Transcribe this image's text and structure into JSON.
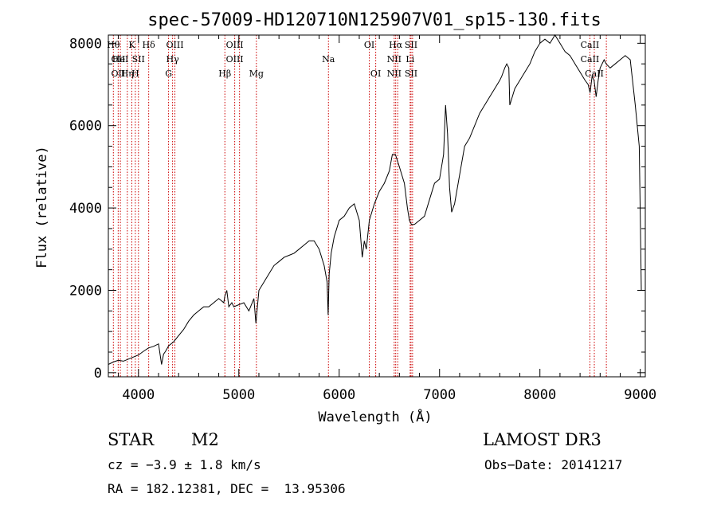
{
  "chart_data": {
    "type": "line",
    "title": "spec-57009-HD120710N125907V01_sp15-130.fits",
    "xlabel": "Wavelength (Å)",
    "ylabel": "Flux (relative)",
    "xlim": [
      3700,
      9050
    ],
    "ylim": [
      -100,
      8200
    ],
    "xticks": [
      4000,
      5000,
      6000,
      7000,
      8000,
      9000
    ],
    "yticks": [
      0,
      2000,
      4000,
      6000,
      8000
    ],
    "series": [
      {
        "name": "flux",
        "x": [
          3700,
          3750,
          3800,
          3850,
          3900,
          3950,
          4000,
          4050,
          4100,
          4150,
          4200,
          4230,
          4250,
          4270,
          4300,
          4350,
          4400,
          4450,
          4500,
          4550,
          4600,
          4650,
          4700,
          4750,
          4800,
          4850,
          4860,
          4880,
          4900,
          4930,
          4950,
          5000,
          5050,
          5100,
          5150,
          5170,
          5200,
          5250,
          5300,
          5350,
          5400,
          5450,
          5500,
          5550,
          5600,
          5650,
          5700,
          5750,
          5800,
          5850,
          5880,
          5890,
          5900,
          5920,
          5950,
          6000,
          6050,
          6100,
          6150,
          6200,
          6230,
          6250,
          6270,
          6300,
          6350,
          6400,
          6450,
          6500,
          6530,
          6560,
          6600,
          6650,
          6680,
          6700,
          6720,
          6750,
          6800,
          6850,
          6900,
          6950,
          7000,
          7040,
          7060,
          7080,
          7100,
          7120,
          7150,
          7200,
          7250,
          7300,
          7350,
          7400,
          7450,
          7500,
          7550,
          7600,
          7620,
          7650,
          7670,
          7690,
          7700,
          7750,
          7800,
          7850,
          7900,
          7950,
          8000,
          8050,
          8100,
          8150,
          8200,
          8250,
          8300,
          8350,
          8400,
          8450,
          8480,
          8500,
          8520,
          8540,
          8560,
          8580,
          8600,
          8640,
          8660,
          8700,
          8750,
          8800,
          8850,
          8900,
          8950,
          8990,
          9000,
          9010
        ],
        "y": [
          200,
          260,
          300,
          280,
          330,
          380,
          430,
          520,
          600,
          640,
          700,
          200,
          450,
          520,
          650,
          750,
          900,
          1050,
          1250,
          1400,
          1500,
          1600,
          1600,
          1700,
          1800,
          1700,
          1850,
          2000,
          1600,
          1700,
          1600,
          1650,
          1700,
          1500,
          1800,
          1200,
          2000,
          2200,
          2400,
          2600,
          2700,
          2800,
          2850,
          2900,
          3000,
          3100,
          3200,
          3200,
          3000,
          2600,
          2200,
          1400,
          2400,
          2900,
          3300,
          3700,
          3800,
          4000,
          4100,
          3700,
          2800,
          3200,
          3000,
          3700,
          4100,
          4400,
          4600,
          4900,
          5300,
          5300,
          5000,
          4600,
          4000,
          3700,
          3600,
          3600,
          3700,
          3800,
          4200,
          4600,
          4700,
          5300,
          6500,
          5800,
          4500,
          3900,
          4100,
          4800,
          5500,
          5700,
          6000,
          6300,
          6500,
          6700,
          6900,
          7100,
          7200,
          7400,
          7500,
          7400,
          6500,
          6900,
          7100,
          7300,
          7500,
          7800,
          8000,
          8100,
          8000,
          8200,
          8000,
          7800,
          7700,
          7500,
          7300,
          7100,
          7000,
          6800,
          7200,
          7100,
          6700,
          7100,
          7400,
          7600,
          7500,
          7400,
          7500,
          7600,
          7700,
          7600,
          6500,
          5500,
          3800,
          2000
        ]
      }
    ],
    "line_markers": [
      {
        "wl": 3750,
        "labels": [
          {
            "t": "Hθ",
            "row": 0
          }
        ]
      },
      {
        "wl": 3798,
        "labels": [
          {
            "t": "OII",
            "row": 1
          },
          {
            "t": "OII",
            "row": 2
          }
        ]
      },
      {
        "wl": 3820,
        "labels": [
          {
            "t": "HeI",
            "row": 1
          }
        ]
      },
      {
        "wl": 3889,
        "labels": [
          {
            "t": "Hη",
            "row": 2
          }
        ]
      },
      {
        "wl": 3934,
        "labels": [
          {
            "t": "K",
            "row": 0
          }
        ]
      },
      {
        "wl": 3969,
        "labels": [
          {
            "t": "H",
            "row": 2
          }
        ]
      },
      {
        "wl": 4000,
        "labels": [
          {
            "t": "SII",
            "row": 1
          }
        ]
      },
      {
        "wl": 4102,
        "labels": [
          {
            "t": "Hδ",
            "row": 0
          }
        ]
      },
      {
        "wl": 4300,
        "labels": [
          {
            "t": "G",
            "row": 2
          }
        ]
      },
      {
        "wl": 4340,
        "labels": [
          {
            "t": "Hγ",
            "row": 1
          }
        ]
      },
      {
        "wl": 4363,
        "labels": [
          {
            "t": "OIII",
            "row": 0
          }
        ]
      },
      {
        "wl": 4861,
        "labels": [
          {
            "t": "Hβ",
            "row": 2
          }
        ]
      },
      {
        "wl": 4959,
        "labels": [
          {
            "t": "OIII",
            "row": 0
          },
          {
            "t": "OIII",
            "row": 1
          }
        ]
      },
      {
        "wl": 5007,
        "labels": []
      },
      {
        "wl": 5175,
        "labels": [
          {
            "t": "Mg",
            "row": 2
          }
        ]
      },
      {
        "wl": 5893,
        "labels": [
          {
            "t": "Na",
            "row": 1
          }
        ]
      },
      {
        "wl": 6300,
        "labels": [
          {
            "t": "OI",
            "row": 0
          }
        ]
      },
      {
        "wl": 6364,
        "labels": [
          {
            "t": "OI",
            "row": 2
          }
        ]
      },
      {
        "wl": 6548,
        "labels": [
          {
            "t": "NII",
            "row": 1
          },
          {
            "t": "NII",
            "row": 2
          }
        ]
      },
      {
        "wl": 6563,
        "labels": [
          {
            "t": "Hα",
            "row": 0
          }
        ]
      },
      {
        "wl": 6583,
        "labels": []
      },
      {
        "wl": 6707,
        "labels": [
          {
            "t": "Li",
            "row": 1
          }
        ]
      },
      {
        "wl": 6716,
        "labels": [
          {
            "t": "SII",
            "row": 0
          },
          {
            "t": "SII",
            "row": 2
          }
        ]
      },
      {
        "wl": 6731,
        "labels": []
      },
      {
        "wl": 8498,
        "labels": [
          {
            "t": "CaII",
            "row": 0
          },
          {
            "t": "CaII",
            "row": 1
          }
        ]
      },
      {
        "wl": 8542,
        "labels": [
          {
            "t": "CaII",
            "row": 2
          }
        ]
      },
      {
        "wl": 8662,
        "labels": []
      }
    ]
  },
  "info": {
    "object_class": "STAR",
    "subclass": "M2",
    "survey": "LAMOST DR3",
    "cz": "cz = −3.9 ± 1.8 km/s",
    "obs_date": "Obs−Date: 20141217",
    "coords": "RA = 182.12381, DEC =  13.95306"
  },
  "colors": {
    "spectrum": "#000000",
    "marker": "#cc0000",
    "axis": "#000000"
  }
}
